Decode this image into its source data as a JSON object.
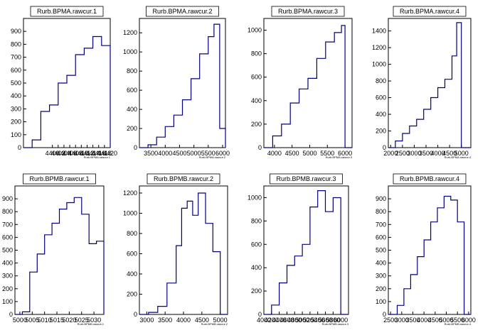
{
  "chart_data": [
    {
      "type": "histogram",
      "title": "Rurb.BPMA.rawcur.1",
      "xlabel": "Rurb.BPMA.rawcur.1",
      "xlim": [
        4390,
        4420
      ],
      "ylim": [
        0,
        1000
      ],
      "xticks": [
        4400,
        4402,
        4404,
        4406,
        4408,
        4410,
        4412,
        4414,
        4416,
        4418,
        4420
      ],
      "yticks": [
        0,
        100,
        200,
        300,
        400,
        500,
        600,
        700,
        800,
        900
      ],
      "x": [
        4390,
        4393,
        4396,
        4399,
        4402,
        4405,
        4408,
        4411,
        4414,
        4417,
        4420
      ],
      "y": [
        0,
        60,
        280,
        330,
        500,
        560,
        720,
        770,
        860,
        790,
        0
      ]
    },
    {
      "type": "histogram",
      "title": "Rurb.BPMA.rawcur.2",
      "xlabel": "Rurb.BPMA.rawcur.2",
      "xlim": [
        3100,
        6100
      ],
      "ylim": [
        0,
        1350
      ],
      "xticks": [
        3500,
        4000,
        4500,
        5000,
        5500,
        6000
      ],
      "yticks": [
        0,
        200,
        400,
        600,
        800,
        1000,
        1200
      ],
      "x": [
        3100,
        3400,
        3700,
        4000,
        4300,
        4600,
        4900,
        5200,
        5500,
        5700,
        5900,
        6100
      ],
      "y": [
        0,
        30,
        110,
        220,
        340,
        500,
        720,
        980,
        1160,
        1290,
        200,
        0
      ]
    },
    {
      "type": "histogram",
      "title": "Rurb.BPMA.rawcur.3",
      "xlabel": "Rurb.BPMA.rawcur.3",
      "xlim": [
        3700,
        6200
      ],
      "ylim": [
        0,
        1100
      ],
      "xticks": [
        4000,
        4500,
        5000,
        5500,
        6000
      ],
      "yticks": [
        0,
        200,
        400,
        600,
        800,
        1000
      ],
      "x": [
        3700,
        3950,
        4200,
        4450,
        4700,
        4950,
        5200,
        5450,
        5700,
        5900,
        6000,
        6200
      ],
      "y": [
        0,
        100,
        200,
        380,
        500,
        590,
        760,
        900,
        980,
        1040,
        0,
        0
      ]
    },
    {
      "type": "histogram",
      "title": "Rurb.BPMA.rawcur.4",
      "xlabel": "Rurb.BPMA.rawcur.4",
      "xlim": [
        1900,
        5400
      ],
      "ylim": [
        0,
        1550
      ],
      "xticks": [
        2000,
        2500,
        3000,
        3500,
        4000,
        4500,
        5000
      ],
      "yticks": [
        0,
        200,
        400,
        600,
        800,
        1000,
        1200,
        1400
      ],
      "x": [
        1900,
        2200,
        2500,
        2800,
        3100,
        3400,
        3700,
        4000,
        4300,
        4600,
        4800,
        5000,
        5400
      ],
      "y": [
        0,
        80,
        170,
        260,
        340,
        460,
        600,
        720,
        820,
        1100,
        1500,
        0,
        0
      ]
    },
    {
      "type": "histogram",
      "title": "Rurb.BPMB.rawcur.1",
      "xlabel": "Rurb.BPMB.rawcur.1",
      "xlim": [
        4998,
        5034
      ],
      "ylim": [
        0,
        1000
      ],
      "xticks": [
        5000,
        5005,
        5010,
        5015,
        5020,
        5025,
        5030
      ],
      "yticks": [
        0,
        100,
        200,
        300,
        400,
        500,
        600,
        700,
        800,
        900
      ],
      "x": [
        4998,
        5001,
        5004,
        5007,
        5010,
        5013,
        5016,
        5019,
        5022,
        5025,
        5028,
        5031,
        5034
      ],
      "y": [
        0,
        20,
        330,
        470,
        620,
        710,
        820,
        870,
        910,
        780,
        550,
        570,
        0
      ]
    },
    {
      "type": "histogram",
      "title": "Rurb.BPMB.rawcur.2",
      "xlabel": "Rurb.BPMB.rawcur.2",
      "xlim": [
        2800,
        5200
      ],
      "ylim": [
        0,
        1270
      ],
      "xticks": [
        3000,
        3500,
        4000,
        4500,
        5000
      ],
      "yticks": [
        0,
        200,
        400,
        600,
        800,
        1000,
        1200
      ],
      "x": [
        2800,
        3050,
        3300,
        3550,
        3800,
        3950,
        4100,
        4250,
        4400,
        4600,
        4800,
        5000,
        5200
      ],
      "y": [
        0,
        20,
        80,
        310,
        680,
        1050,
        1120,
        980,
        1200,
        900,
        620,
        0,
        0
      ]
    },
    {
      "type": "histogram",
      "title": "Rurb.BPMB.rawcur.3",
      "xlabel": "Rurb.BPMB.rawcur.3",
      "xlim": [
        4000,
        6200
      ],
      "ylim": [
        0,
        1100
      ],
      "xticks": [
        4000,
        4200,
        4400,
        4600,
        4800,
        5000,
        5200,
        5400,
        5600,
        5800,
        6000
      ],
      "yticks": [
        0,
        200,
        400,
        600,
        800,
        1000
      ],
      "x": [
        4000,
        4200,
        4400,
        4600,
        4800,
        5000,
        5200,
        5400,
        5600,
        5800,
        6000,
        6200
      ],
      "y": [
        0,
        80,
        270,
        420,
        500,
        600,
        920,
        1060,
        880,
        1000,
        0,
        0
      ]
    },
    {
      "type": "histogram",
      "title": "Rurb.BPMB.rawcur.4",
      "xlabel": "Rurb.BPMB.rawcur.4",
      "xlim": [
        2400,
        6100
      ],
      "ylim": [
        0,
        1000
      ],
      "xticks": [
        2500,
        3000,
        3500,
        4000,
        4500,
        5000,
        5500,
        6000
      ],
      "yticks": [
        0,
        100,
        200,
        300,
        400,
        500,
        600,
        700,
        800,
        900
      ],
      "x": [
        2400,
        2800,
        3100,
        3400,
        3700,
        4000,
        4300,
        4600,
        4900,
        5200,
        5500,
        5800,
        6100
      ],
      "y": [
        0,
        70,
        200,
        310,
        450,
        580,
        720,
        830,
        920,
        890,
        720,
        0,
        0
      ]
    }
  ]
}
